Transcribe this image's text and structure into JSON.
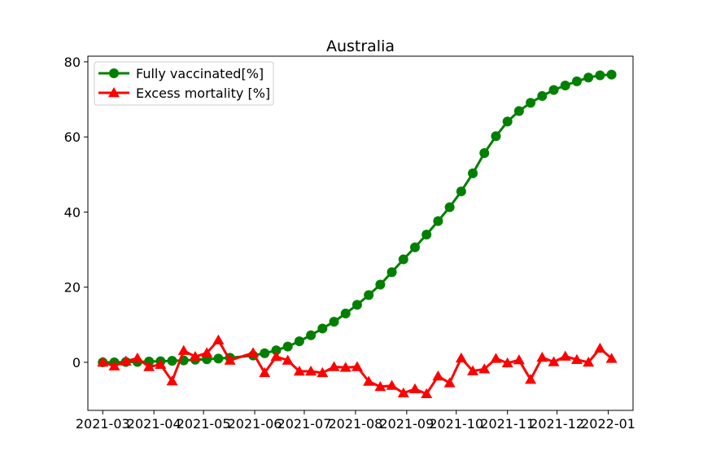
{
  "chart_data": {
    "type": "line",
    "title": "Australia",
    "xlabel": "",
    "ylabel": "",
    "x_ticks": [
      "2021-03",
      "2021-04",
      "2021-05",
      "2021-06",
      "2021-07",
      "2021-08",
      "2021-09",
      "2021-10",
      "2021-11",
      "2021-12",
      "2022-01"
    ],
    "y_ticks": [
      "0",
      "20",
      "40",
      "60",
      "80"
    ],
    "xlim": [
      "2021-02-20",
      "2022-01-16"
    ],
    "ylim": [
      -12.8,
      81.5
    ],
    "grid": false,
    "legend_position": "top-left",
    "series": [
      {
        "name": "Fully vaccinated[%]",
        "color": "#008000",
        "marker": "circle",
        "x": [
          "2021-03-01",
          "2021-03-08",
          "2021-03-15",
          "2021-03-22",
          "2021-03-29",
          "2021-04-05",
          "2021-04-12",
          "2021-04-19",
          "2021-04-26",
          "2021-05-03",
          "2021-05-10",
          "2021-05-17",
          "2021-05-31",
          "2021-06-07",
          "2021-06-14",
          "2021-06-21",
          "2021-06-28",
          "2021-07-05",
          "2021-07-12",
          "2021-07-19",
          "2021-07-26",
          "2021-08-02",
          "2021-08-09",
          "2021-08-16",
          "2021-08-23",
          "2021-08-30",
          "2021-09-06",
          "2021-09-13",
          "2021-09-20",
          "2021-09-27",
          "2021-10-04",
          "2021-10-11",
          "2021-10-18",
          "2021-10-25",
          "2021-11-01",
          "2021-11-08",
          "2021-11-15",
          "2021-11-22",
          "2021-11-29",
          "2021-12-06",
          "2021-12-13",
          "2021-12-20",
          "2021-12-27",
          "2022-01-03"
        ],
        "y": [
          0.0,
          0.0,
          0.1,
          0.1,
          0.2,
          0.3,
          0.4,
          0.5,
          0.7,
          0.8,
          1.0,
          1.2,
          1.8,
          2.4,
          3.2,
          4.2,
          5.6,
          7.2,
          9.0,
          10.8,
          13.0,
          15.3,
          17.9,
          20.7,
          24.0,
          27.4,
          30.6,
          34.0,
          37.6,
          41.3,
          45.5,
          50.3,
          55.7,
          60.2,
          64.1,
          66.9,
          69.1,
          70.9,
          72.5,
          73.7,
          74.8,
          75.8,
          76.4,
          76.6
        ]
      },
      {
        "name": "Excess mortality [%]",
        "color": "#ff0000",
        "marker": "triangle",
        "x": [
          "2021-03-01",
          "2021-03-08",
          "2021-03-15",
          "2021-03-22",
          "2021-03-29",
          "2021-04-05",
          "2021-04-12",
          "2021-04-19",
          "2021-04-26",
          "2021-05-03",
          "2021-05-10",
          "2021-05-17",
          "2021-05-31",
          "2021-06-07",
          "2021-06-14",
          "2021-06-21",
          "2021-06-28",
          "2021-07-05",
          "2021-07-12",
          "2021-07-19",
          "2021-07-26",
          "2021-08-02",
          "2021-08-09",
          "2021-08-16",
          "2021-08-23",
          "2021-08-30",
          "2021-09-06",
          "2021-09-13",
          "2021-09-20",
          "2021-09-27",
          "2021-10-04",
          "2021-10-11",
          "2021-10-18",
          "2021-10-25",
          "2021-11-01",
          "2021-11-08",
          "2021-11-15",
          "2021-11-22",
          "2021-11-29",
          "2021-12-06",
          "2021-12-13",
          "2021-12-20",
          "2021-12-27",
          "2022-01-03"
        ],
        "y": [
          0.0,
          -1.0,
          0.3,
          1.1,
          -1.2,
          -0.6,
          -5.0,
          3.1,
          1.5,
          2.5,
          5.9,
          0.5,
          2.5,
          -2.8,
          1.5,
          0.5,
          -2.4,
          -2.4,
          -2.8,
          -1.2,
          -1.4,
          -1.2,
          -5.1,
          -6.5,
          -6.2,
          -8.2,
          -7.1,
          -8.4,
          -3.7,
          -5.5,
          1.1,
          -2.3,
          -1.8,
          1.0,
          -0.2,
          0.6,
          -4.6,
          1.3,
          0.1,
          1.6,
          0.7,
          0.0,
          3.7,
          1.0
        ]
      }
    ]
  }
}
